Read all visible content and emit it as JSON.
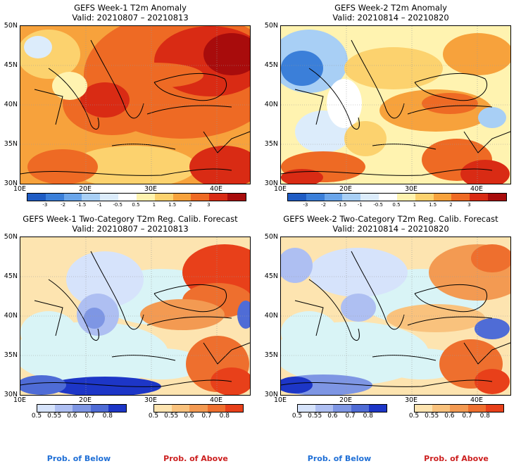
{
  "panels": [
    {
      "title": "GEFS Week-1 T2m Anomaly",
      "valid": "Valid: 20210807 – 20210813"
    },
    {
      "title": "GEFS Week-2 T2m Anomaly",
      "valid": "Valid: 20210814 – 20210820"
    },
    {
      "title": "GEFS Week-1 Two-Category T2m Reg. Calib. Forecast",
      "valid": "Valid: 20210807 – 20210813"
    },
    {
      "title": "GEFS Week-2 Two-Category T2m Reg. Calib. Forecast",
      "valid": "Valid: 20210814 – 20210820"
    }
  ],
  "axes": {
    "lat_labels": [
      "50N",
      "45N",
      "40N",
      "35N",
      "30N"
    ],
    "lon_labels": [
      "10E",
      "20E",
      "30E",
      "40E"
    ]
  },
  "anomaly_colorbar": {
    "ticks": [
      "-3",
      "-2",
      "-1.5",
      "-1",
      "-0.5",
      "0.5",
      "1",
      "1.5",
      "2",
      "3"
    ],
    "colors": [
      "#1f5cc4",
      "#3b7fd9",
      "#6aa5ea",
      "#a8cff5",
      "#dcecfb",
      "#ffffff",
      "#fff3b0",
      "#fcd26e",
      "#f7a23c",
      "#ee6a24",
      "#d92b14",
      "#a80c0c"
    ]
  },
  "prob_colorbars": {
    "below_ticks": [
      "0.5",
      "0.55",
      "0.6",
      "0.7",
      "0.8"
    ],
    "below_colors": [
      "#d6e3fb",
      "#aebff2",
      "#7e96e4",
      "#4f6cd6",
      "#1d36c7"
    ],
    "above_ticks": [
      "0.5",
      "0.55",
      "0.6",
      "0.7",
      "0.8"
    ],
    "above_colors": [
      "#fde4b0",
      "#f9c27d",
      "#f39a52",
      "#ee6f2e",
      "#e8401a"
    ]
  },
  "footer": {
    "below_label": "Prob. of Below",
    "above_label": "Prob. of Above",
    "below_color": "#1f6fd6",
    "above_color": "#cc1f1f"
  },
  "sea_color": "#d9f4f6"
}
